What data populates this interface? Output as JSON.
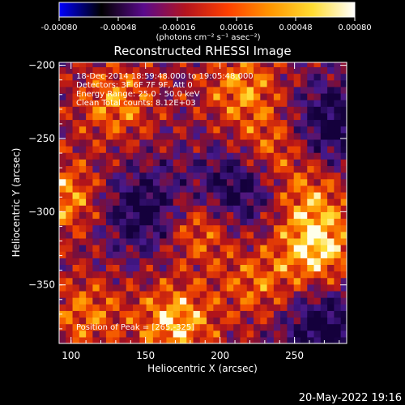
{
  "chart_data": {
    "type": "heatmap",
    "title": "Reconstructed RHESSI Image",
    "xlabel": "Heliocentric X (arcsec)",
    "ylabel": "Heliocentric Y (arcsec)",
    "xlim": [
      92,
      285
    ],
    "ylim": [
      -390,
      -198
    ],
    "x_ticks": [
      100,
      150,
      200,
      250
    ],
    "y_ticks": [
      -200,
      -250,
      -300,
      -350
    ],
    "colorbar": {
      "range": [
        -0.0008,
        0.0008
      ],
      "ticks": [
        "-0.00080",
        "-0.00048",
        "-0.00016",
        "0.00016",
        "0.00048",
        "0.00080"
      ],
      "unit_label": "(photons cm⁻² s⁻¹ asec⁻²)",
      "colormap": [
        "#0000ff",
        "#000000",
        "#5a0a8c",
        "#b4141e",
        "#ff4000",
        "#ff9600",
        "#ffdc32",
        "#ffffff"
      ]
    },
    "annotations": [
      "18-Dec-2014 18:59:48.000 to 19:05:48.000",
      "Detectors: 3F 6F 7F 9F, Att 0",
      "Energy Range: 25.0 - 50.0 keV",
      "Clean    Total counts: 8.12E+03"
    ],
    "peak_text": "Position of Peak = [265,-325]",
    "peak": {
      "x": 265,
      "y": -325
    },
    "bright_sources": [
      {
        "x": 265,
        "y": -325,
        "strength": 1.0
      },
      {
        "x": 170,
        "y": -375,
        "strength": 0.9
      },
      {
        "x": 95,
        "y": -290,
        "strength": 0.75
      },
      {
        "x": 130,
        "y": -225,
        "strength": 0.7
      },
      {
        "x": 215,
        "y": -215,
        "strength": 0.7
      },
      {
        "x": 185,
        "y": -310,
        "strength": 0.75
      },
      {
        "x": 235,
        "y": -255,
        "strength": 0.6
      },
      {
        "x": 110,
        "y": -370,
        "strength": 0.6
      },
      {
        "x": 225,
        "y": -350,
        "strength": 0.55
      },
      {
        "x": 260,
        "y": -290,
        "strength": 0.6
      }
    ],
    "dark_regions": [
      {
        "x": 275,
        "y": -240
      },
      {
        "x": 150,
        "y": -300
      },
      {
        "x": 210,
        "y": -285
      },
      {
        "x": 270,
        "y": -380
      }
    ]
  },
  "footer": {
    "timestamp": "20-May-2022 19:16"
  }
}
